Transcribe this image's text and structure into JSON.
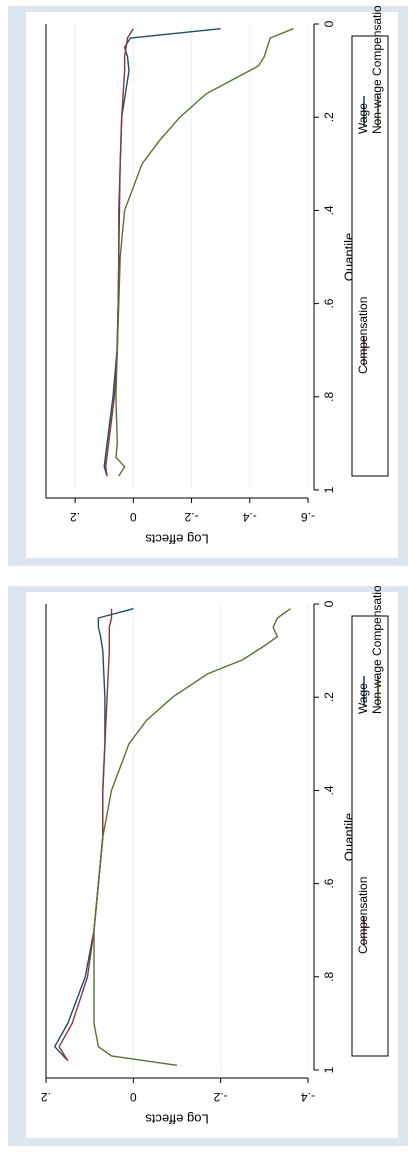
{
  "chart_data": [
    {
      "type": "line",
      "orientation": "rotated 90 degrees clockwise (quantile axis runs top to bottom)",
      "xlabel": "Quantile",
      "ylabel": "Log effects",
      "xlim": [
        0,
        1
      ],
      "ylim": [
        -0.6,
        0.3
      ],
      "xticks": [
        "0",
        ".2",
        ".4",
        ".6",
        ".8",
        "1"
      ],
      "yticks": [
        "-.6",
        "-.4",
        "-.2",
        "0",
        ".2"
      ],
      "legend": "bottom",
      "colors": {
        "Wage": "#1a4f72",
        "Compensation": "#90353b",
        "Non-wage Compensation": "#55752f"
      },
      "series": [
        {
          "name": "Wage",
          "x": [
            0.01,
            0.03,
            0.05,
            0.07,
            0.1,
            0.2,
            0.3,
            0.4,
            0.5,
            0.6,
            0.7,
            0.8,
            0.9,
            0.95,
            0.97
          ],
          "y": [
            -0.3,
            0.01,
            0.03,
            0.02,
            0.015,
            0.04,
            0.045,
            0.048,
            0.05,
            0.052,
            0.056,
            0.07,
            0.09,
            0.1,
            0.09
          ]
        },
        {
          "name": "Compensation",
          "x": [
            0.01,
            0.03,
            0.05,
            0.07,
            0.1,
            0.2,
            0.3,
            0.4,
            0.5,
            0.6,
            0.7,
            0.8,
            0.9,
            0.95,
            0.97
          ],
          "y": [
            0.0,
            0.02,
            0.025,
            0.03,
            0.03,
            0.04,
            0.045,
            0.05,
            0.05,
            0.052,
            0.055,
            0.065,
            0.085,
            0.095,
            0.09
          ]
        },
        {
          "name": "Non-wage Compensation",
          "x": [
            0.01,
            0.03,
            0.05,
            0.07,
            0.09,
            0.12,
            0.15,
            0.2,
            0.25,
            0.3,
            0.4,
            0.5,
            0.6,
            0.7,
            0.8,
            0.9,
            0.93,
            0.95,
            0.97
          ],
          "y": [
            -0.55,
            -0.47,
            -0.46,
            -0.45,
            -0.43,
            -0.34,
            -0.25,
            -0.16,
            -0.09,
            -0.03,
            0.03,
            0.045,
            0.05,
            0.055,
            0.06,
            0.055,
            0.06,
            0.03,
            0.05
          ]
        }
      ]
    },
    {
      "type": "line",
      "orientation": "rotated 90 degrees clockwise (quantile axis runs top to bottom)",
      "xlabel": "Quantile",
      "ylabel": "Log effects",
      "xlim": [
        0,
        1
      ],
      "ylim": [
        -0.4,
        0.2
      ],
      "xticks": [
        "0",
        ".2",
        ".4",
        ".6",
        ".8",
        "1"
      ],
      "yticks": [
        "-.4",
        "-.2",
        "0",
        ".2"
      ],
      "legend": "bottom",
      "colors": {
        "Wage": "#1a4f72",
        "Compensation": "#90353b",
        "Non-wage Compensation": "#55752f"
      },
      "series": [
        {
          "name": "Wage",
          "x": [
            0.01,
            0.03,
            0.05,
            0.07,
            0.1,
            0.2,
            0.3,
            0.4,
            0.5,
            0.6,
            0.7,
            0.8,
            0.9,
            0.95,
            0.98
          ],
          "y": [
            0.0,
            0.08,
            0.08,
            0.075,
            0.07,
            0.065,
            0.065,
            0.07,
            0.07,
            0.08,
            0.09,
            0.11,
            0.15,
            0.18,
            0.15
          ]
        },
        {
          "name": "Compensation",
          "x": [
            0.01,
            0.03,
            0.05,
            0.07,
            0.1,
            0.2,
            0.3,
            0.4,
            0.5,
            0.6,
            0.7,
            0.8,
            0.9,
            0.95,
            0.98
          ],
          "y": [
            0.05,
            0.05,
            0.055,
            0.055,
            0.055,
            0.06,
            0.065,
            0.07,
            0.07,
            0.08,
            0.09,
            0.105,
            0.14,
            0.17,
            0.15
          ]
        },
        {
          "name": "Non-wage Compensation",
          "x": [
            0.01,
            0.03,
            0.05,
            0.07,
            0.09,
            0.12,
            0.15,
            0.2,
            0.25,
            0.3,
            0.4,
            0.5,
            0.6,
            0.7,
            0.8,
            0.9,
            0.95,
            0.97,
            0.99
          ],
          "y": [
            -0.36,
            -0.33,
            -0.32,
            -0.33,
            -0.3,
            -0.25,
            -0.17,
            -0.09,
            -0.03,
            0.01,
            0.05,
            0.07,
            0.08,
            0.09,
            0.09,
            0.09,
            0.08,
            0.05,
            -0.1
          ]
        }
      ]
    }
  ]
}
